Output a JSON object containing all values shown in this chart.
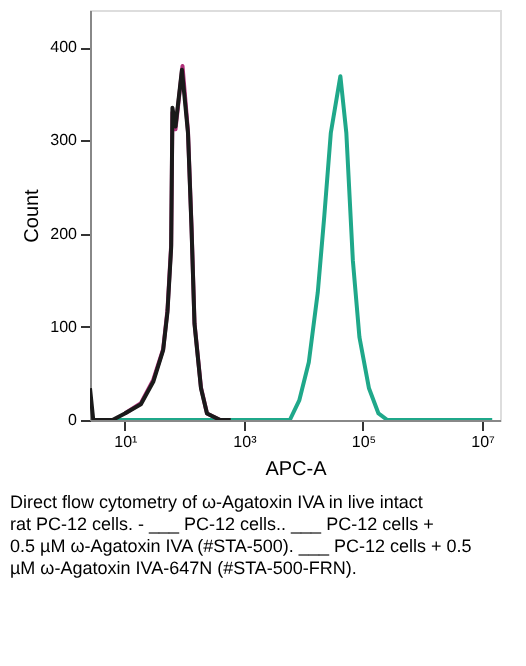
{
  "chart_data": {
    "type": "line",
    "xlabel": "APC-A",
    "ylabel": "Count",
    "annotations": [
      "Direct flow cytometry of ω-Agatoxin IVA in live intact rat PC-12 cells. - ___ PC-12 cells.. ___ PC-12 cells + 0.5 µM ω-Agatoxin IVA (#STA-500). ___ PC-12 cells + 0.5 µM ω-Agatoxin IVA-647N (#STA-500-FRN)."
    ],
    "log": "x",
    "xlim": [
      2.6,
      20000000
    ],
    "xticks": [
      {
        "value": 10,
        "label": "10¹"
      },
      {
        "value": 1000,
        "label": "10³"
      },
      {
        "value": 100000,
        "label": "10⁵"
      },
      {
        "value": 10000000,
        "label": "10⁷"
      }
    ],
    "ylim": [
      0,
      440
    ],
    "yticks": [
      0,
      100,
      200,
      300,
      400
    ],
    "grid": false,
    "legend": false,
    "line_style": "solid",
    "marker": "none",
    "series": [
      {
        "color": "#1a1a1a",
        "x": [
          2.6,
          2.95,
          3.7,
          6.2,
          10,
          18.6,
          30,
          44,
          52,
          60,
          63,
          71,
          91,
          115,
          132,
          148,
          190,
          240,
          400,
          600
        ],
        "values": [
          34,
          0,
          0,
          0,
          7,
          17,
          41,
          75,
          116,
          185,
          335,
          315,
          376,
          308,
          205,
          103,
          34,
          7,
          0,
          0
        ]
      },
      {
        "color": "#b0307a",
        "x": [
          10,
          18.6,
          30,
          44,
          52,
          60,
          63,
          71,
          93,
          115,
          132,
          148,
          190,
          240,
          400
        ],
        "values": [
          7,
          18,
          43,
          76,
          118,
          188,
          330,
          312,
          380,
          310,
          207,
          104,
          35,
          7,
          0
        ]
      },
      {
        "color": "#1fa88a",
        "x": [
          6.2,
          5900,
          8500,
          12300,
          17400,
          22400,
          28800,
          41700,
          52500,
          67600,
          87100,
          126000,
          182000,
          257000,
          14800000
        ],
        "values": [
          0,
          0,
          21,
          62,
          137,
          219,
          308,
          369,
          308,
          171,
          89,
          34,
          7,
          0,
          0
        ]
      }
    ]
  }
}
